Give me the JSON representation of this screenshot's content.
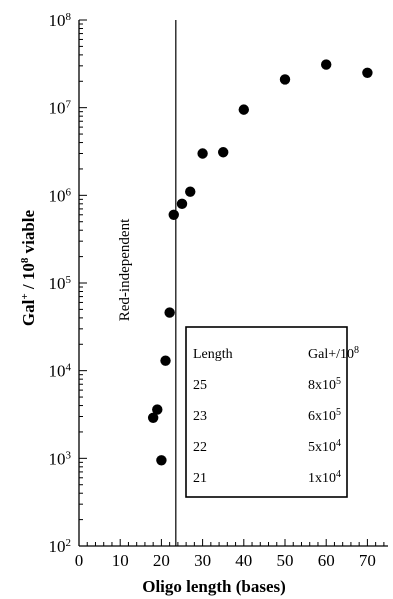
{
  "chart_data": {
    "type": "scatter",
    "title": "",
    "xlabel": "Oligo length (bases)",
    "ylabel": {
      "prefix": "Gal",
      "prefix_sup": "+",
      "middle": " / 10",
      "middle_sup": "8",
      "suffix": " viable"
    },
    "xlim": [
      0,
      75
    ],
    "ylim": [
      100,
      100000000
    ],
    "y_scale": "log",
    "grid": false,
    "x_ticks": [
      {
        "value": 0,
        "label": "0"
      },
      {
        "value": 10,
        "label": "10"
      },
      {
        "value": 20,
        "label": "20"
      },
      {
        "value": 30,
        "label": "30"
      },
      {
        "value": 40,
        "label": "40"
      },
      {
        "value": 50,
        "label": "50"
      },
      {
        "value": 60,
        "label": "60"
      },
      {
        "value": 70,
        "label": "70"
      }
    ],
    "y_ticks": [
      {
        "value": 100,
        "base": "10",
        "exp": "2"
      },
      {
        "value": 1000,
        "base": "10",
        "exp": "3"
      },
      {
        "value": 10000,
        "base": "10",
        "exp": "4"
      },
      {
        "value": 100000,
        "base": "10",
        "exp": "5"
      },
      {
        "value": 1000000,
        "base": "10",
        "exp": "6"
      },
      {
        "value": 10000000,
        "base": "10",
        "exp": "7"
      },
      {
        "value": 100000000,
        "base": "10",
        "exp": "8"
      }
    ],
    "points": [
      {
        "x": 18,
        "y": 2900
      },
      {
        "x": 19,
        "y": 3600
      },
      {
        "x": 20,
        "y": 950
      },
      {
        "x": 21,
        "y": 13000
      },
      {
        "x": 22,
        "y": 46000
      },
      {
        "x": 23,
        "y": 600000
      },
      {
        "x": 25,
        "y": 800000
      },
      {
        "x": 27,
        "y": 1100000
      },
      {
        "x": 30,
        "y": 3000000
      },
      {
        "x": 35,
        "y": 3100000
      },
      {
        "x": 40,
        "y": 9500000
      },
      {
        "x": 50,
        "y": 21000000
      },
      {
        "x": 60,
        "y": 31000000
      },
      {
        "x": 70,
        "y": 25000000
      }
    ],
    "vertical_line": {
      "x": 23.5,
      "label": "Red-independent"
    },
    "inset_table": {
      "headers": {
        "length": "Length",
        "gal_prefix": "Gal+/10",
        "gal_sup": "8"
      },
      "rows": [
        {
          "length": "25",
          "mant": "8x10",
          "exp": "5"
        },
        {
          "length": "23",
          "mant": "6x10",
          "exp": "5"
        },
        {
          "length": "22",
          "mant": "5x10",
          "exp": "4"
        },
        {
          "length": "21",
          "mant": "1x10",
          "exp": "4"
        }
      ]
    },
    "marker_color": "#000000",
    "axis_color": "#000000"
  }
}
